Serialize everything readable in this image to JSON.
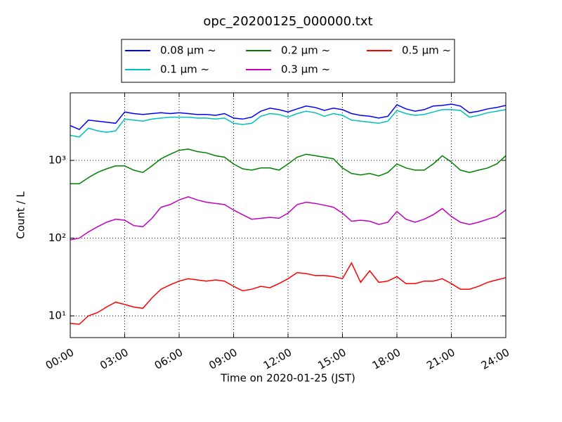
{
  "chart_data": {
    "type": "line",
    "title": "opc_20200125_000000.txt",
    "x_label": "Time on 2020-01-25 (JST)",
    "y_label": "Count / L",
    "log_y": true,
    "grid": true,
    "legend_position": "top",
    "x": [
      "00:00",
      "00:30",
      "01:00",
      "01:30",
      "02:00",
      "02:30",
      "03:00",
      "03:30",
      "04:00",
      "04:30",
      "05:00",
      "05:30",
      "06:00",
      "06:30",
      "07:00",
      "07:30",
      "08:00",
      "08:30",
      "09:00",
      "09:30",
      "10:00",
      "10:30",
      "11:00",
      "11:30",
      "12:00",
      "12:30",
      "13:00",
      "13:30",
      "14:00",
      "14:30",
      "15:00",
      "15:30",
      "16:00",
      "16:30",
      "17:00",
      "17:30",
      "18:00",
      "18:30",
      "19:00",
      "19:30",
      "20:00",
      "20:30",
      "21:00",
      "21:30",
      "22:00",
      "22:30",
      "23:00",
      "23:30",
      "24:00"
    ],
    "xlim": [
      "00:00",
      "24:00"
    ],
    "xticks": [
      "00:00",
      "03:00",
      "06:00",
      "09:00",
      "12:00",
      "15:00",
      "18:00",
      "21:00",
      "24:00"
    ],
    "ylim": [
      5.25,
      7400
    ],
    "yticks": [
      {
        "value": 10,
        "label": "10¹"
      },
      {
        "value": 100,
        "label": "10²"
      },
      {
        "value": 1000,
        "label": "10³"
      }
    ],
    "series": [
      {
        "name": "0.08 µm ~",
        "color": "#0000ff",
        "values": [
          2800,
          2500,
          3300,
          3200,
          3100,
          3000,
          4200,
          4000,
          3900,
          4000,
          4100,
          4000,
          4100,
          4000,
          3900,
          3900,
          3800,
          4000,
          3500,
          3400,
          3600,
          4300,
          4700,
          4500,
          4200,
          4600,
          5000,
          4800,
          4400,
          4700,
          4500,
          4000,
          3800,
          3700,
          3500,
          3700,
          5200,
          4600,
          4300,
          4500,
          5000,
          5100,
          5300,
          5000,
          4100,
          4300,
          4600,
          4800,
          5100
        ]
      },
      {
        "name": "0.1 µm ~",
        "color": "#00bfbf",
        "values": [
          2100,
          2000,
          2600,
          2400,
          2300,
          2400,
          3400,
          3300,
          3200,
          3400,
          3500,
          3600,
          3600,
          3600,
          3500,
          3500,
          3400,
          3500,
          3000,
          2900,
          3000,
          3700,
          4000,
          3900,
          3600,
          4000,
          4300,
          4100,
          3700,
          4000,
          3800,
          3300,
          3200,
          3100,
          3000,
          3200,
          4400,
          4000,
          3800,
          3900,
          4200,
          4500,
          4500,
          4400,
          3600,
          3800,
          4100,
          4300,
          4500
        ]
      },
      {
        "name": "0.2 µm ~",
        "color": "#008000",
        "values": [
          500,
          500,
          600,
          700,
          780,
          850,
          850,
          750,
          700,
          850,
          1050,
          1200,
          1350,
          1400,
          1300,
          1250,
          1150,
          1100,
          900,
          780,
          750,
          800,
          800,
          750,
          900,
          1100,
          1200,
          1150,
          1100,
          1050,
          800,
          680,
          650,
          680,
          630,
          700,
          900,
          800,
          750,
          750,
          900,
          1150,
          950,
          750,
          700,
          750,
          800,
          900,
          1150
        ]
      },
      {
        "name": "0.3 µm ~",
        "color": "#bf00bf",
        "values": [
          95,
          100,
          120,
          140,
          160,
          175,
          170,
          145,
          140,
          180,
          250,
          270,
          310,
          340,
          310,
          290,
          280,
          270,
          230,
          200,
          175,
          180,
          185,
          180,
          210,
          270,
          290,
          280,
          265,
          250,
          210,
          165,
          170,
          165,
          150,
          160,
          220,
          175,
          160,
          175,
          200,
          240,
          190,
          160,
          150,
          160,
          175,
          190,
          230
        ]
      },
      {
        "name": "0.5 µm ~",
        "color": "#ff0000",
        "values": [
          8,
          7.8,
          10,
          11,
          13,
          15,
          14,
          13,
          12.5,
          17,
          22,
          25,
          28,
          30,
          29,
          28,
          29,
          28,
          24,
          21,
          22,
          24,
          23,
          26,
          30,
          36,
          35,
          33,
          33,
          32,
          30,
          48,
          27,
          38,
          27,
          28,
          32,
          26,
          26,
          28,
          28,
          30,
          26,
          22,
          22,
          24,
          27,
          29,
          31
        ]
      }
    ]
  }
}
